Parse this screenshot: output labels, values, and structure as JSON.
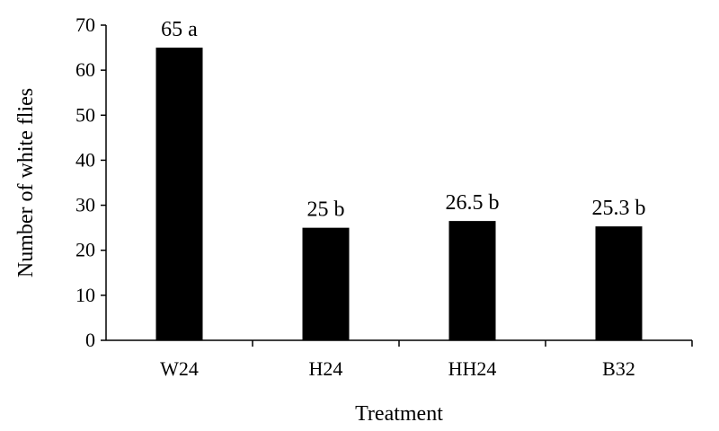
{
  "chart_data": {
    "type": "bar",
    "categories": [
      "W24",
      "H24",
      "HH24",
      "B32"
    ],
    "values": [
      65,
      25,
      26.5,
      25.3
    ],
    "data_labels": [
      "65 a",
      "25 b",
      "26.5 b",
      "25.3 b"
    ],
    "xlabel": "Treatment",
    "ylabel": "Number of white flies",
    "ylim": [
      0,
      70
    ],
    "yticks": [
      0,
      10,
      20,
      30,
      40,
      50,
      60,
      70
    ],
    "grid": false,
    "legend": "none",
    "bar_color": "#000000"
  }
}
